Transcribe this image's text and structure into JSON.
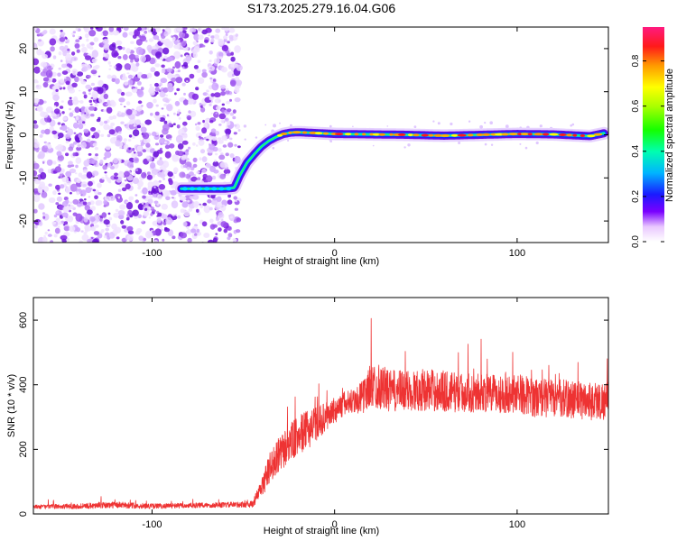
{
  "title": "S173.2025.279.16.04.G06",
  "colors": {
    "snr_line": "#ee3333",
    "noise_dots": "#8a3ee0",
    "axis": "#000000"
  },
  "chart_data": [
    {
      "type": "heatmap",
      "name": "spectrogram",
      "xlabel": "Height of straight line (km)",
      "ylabel": "Frequency (Hz)",
      "xlim": [
        -165,
        150
      ],
      "ylim": [
        -25,
        25
      ],
      "x_ticks": [
        -100,
        0,
        100
      ],
      "y_ticks": [
        -20,
        -10,
        0,
        10,
        20
      ],
      "noise_region_x": [
        -165,
        -52
      ],
      "track": {
        "x": [
          -84,
          -70,
          -60,
          -55,
          -52,
          -48,
          -44,
          -40,
          -36,
          -32,
          -28,
          -24,
          -20,
          -10,
          0,
          20,
          40,
          60,
          80,
          100,
          120,
          140,
          148
        ],
        "y": [
          -12.5,
          -12.5,
          -12.5,
          -12.3,
          -9.5,
          -6.5,
          -4.5,
          -2.7,
          -1.4,
          -0.5,
          0.2,
          0.5,
          0.6,
          0.4,
          0.2,
          0.1,
          0.0,
          -0.2,
          0.0,
          0.2,
          0.1,
          -0.3,
          0.4
        ]
      },
      "colorbar": {
        "label": "Normalized spectral amplitude",
        "range": [
          0,
          0.95
        ],
        "ticks": [
          0.0,
          0.2,
          0.4,
          0.6,
          0.8
        ],
        "tick_labels": [
          "0.0",
          "0.2",
          "0.4",
          "0.6",
          "0.8"
        ]
      }
    },
    {
      "type": "line",
      "name": "snr",
      "xlabel": "Height of straight line (km)",
      "ylabel": "SNR (10 * v/v)",
      "xlim": [
        -165,
        150
      ],
      "ylim": [
        0,
        670
      ],
      "x_ticks": [
        -100,
        0,
        100
      ],
      "y_ticks": [
        0,
        200,
        400,
        600
      ],
      "series": [
        {
          "name": "SNR",
          "x": [
            -165,
            -140,
            -120,
            -100,
            -80,
            -60,
            -45,
            -40,
            -35,
            -30,
            -25,
            -20,
            -15,
            -10,
            -5,
            0,
            5,
            10,
            15,
            20,
            25,
            30,
            40,
            50,
            60,
            70,
            80,
            90,
            100,
            110,
            120,
            130,
            140,
            150
          ],
          "y": [
            22,
            24,
            28,
            24,
            26,
            28,
            30,
            80,
            150,
            180,
            220,
            240,
            260,
            280,
            300,
            320,
            340,
            350,
            360,
            400,
            395,
            380,
            380,
            385,
            380,
            375,
            375,
            370,
            375,
            360,
            360,
            355,
            350,
            350
          ],
          "noise": [
            6,
            8,
            10,
            8,
            8,
            8,
            10,
            30,
            50,
            55,
            60,
            60,
            60,
            55,
            45,
            40,
            40,
            40,
            50,
            70,
            70,
            65,
            65,
            65,
            65,
            60,
            60,
            60,
            60,
            60,
            60,
            60,
            60,
            60
          ]
        }
      ]
    }
  ]
}
